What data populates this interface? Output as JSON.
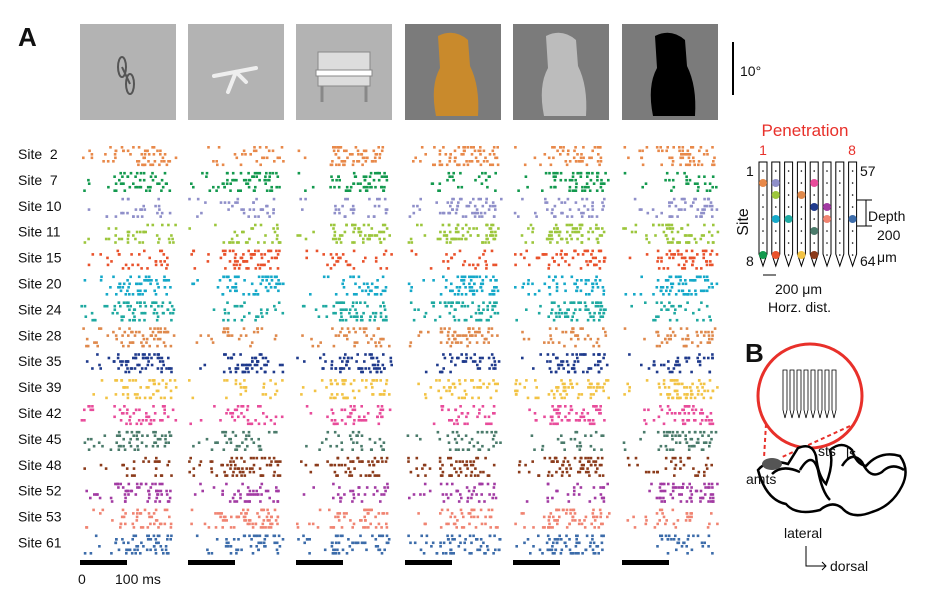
{
  "panel_a": {
    "label": "A",
    "scale_bar": "10°",
    "time_axis": {
      "start": "0",
      "end": "100 ms"
    },
    "sites": [
      {
        "label": "Site  2",
        "color": "#e8894a"
      },
      {
        "label": "Site  7",
        "color": "#13994e"
      },
      {
        "label": "Site 10",
        "color": "#8f8fc9"
      },
      {
        "label": "Site 11",
        "color": "#9cc63c"
      },
      {
        "label": "Site 15",
        "color": "#e9522b"
      },
      {
        "label": "Site 20",
        "color": "#16a9c9"
      },
      {
        "label": "Site 24",
        "color": "#1fa9a1"
      },
      {
        "label": "Site 28",
        "color": "#df894c"
      },
      {
        "label": "Site 35",
        "color": "#1f3a8c"
      },
      {
        "label": "Site 39",
        "color": "#f2c344"
      },
      {
        "label": "Site 42",
        "color": "#e84c9b"
      },
      {
        "label": "Site 45",
        "color": "#4b7b6b"
      },
      {
        "label": "Site 48",
        "color": "#8b3b1b"
      },
      {
        "label": "Site 52",
        "color": "#a23ba3"
      },
      {
        "label": "Site 53",
        "color": "#f08472"
      },
      {
        "label": "Site 61",
        "color": "#3c6caa"
      }
    ]
  },
  "penetration": {
    "title": "Penetration",
    "first": "1",
    "last": "8",
    "axis": "Site",
    "top_left": "1",
    "top_right": "57",
    "bottom_left": "8",
    "bottom_right": "64",
    "depth": "Depth",
    "depth_value": "200",
    "depth_unit": "μm",
    "horz_value": "200 μm",
    "horz_label": "Horz. dist."
  },
  "panel_b": {
    "label": "B",
    "amts": "amts",
    "sts": "sts",
    "ls": "ls",
    "lateral": "lateral",
    "dorsal": "dorsal"
  }
}
